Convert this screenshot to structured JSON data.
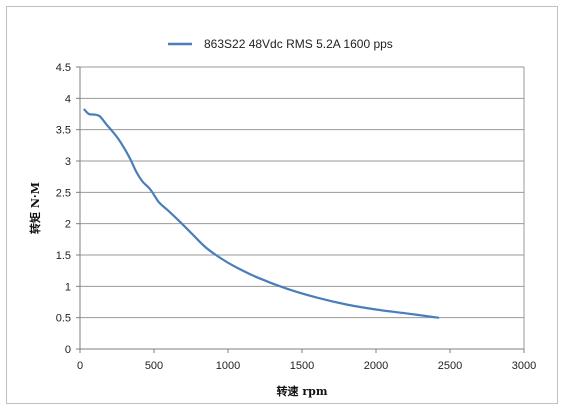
{
  "chart_data": {
    "type": "line",
    "title": "",
    "xlabel": "转速 rpm",
    "ylabel": "转矩 N·M",
    "xlim": [
      0,
      3000
    ],
    "ylim": [
      0,
      4.5
    ],
    "x_ticks": [
      "0",
      "500",
      "1000",
      "1500",
      "2000",
      "2500",
      "3000"
    ],
    "y_ticks": [
      "0",
      "0.5",
      "1",
      "1.5",
      "2",
      "2.5",
      "3",
      "3.5",
      "4",
      "4.5"
    ],
    "grid": "horizontal",
    "legend_position": "top-center",
    "series": [
      {
        "name": "863S22 48Vdc RMS 5.2A 1600 pps",
        "color": "#4a7ebb",
        "x": [
          30,
          60,
          100,
          130,
          150,
          180,
          220,
          260,
          300,
          340,
          380,
          420,
          470,
          500,
          530,
          560,
          600,
          680,
          760,
          850,
          950,
          1050,
          1200,
          1400,
          1600,
          1800,
          2000,
          2200,
          2420
        ],
        "y": [
          3.82,
          3.75,
          3.74,
          3.72,
          3.67,
          3.58,
          3.47,
          3.35,
          3.2,
          3.03,
          2.83,
          2.68,
          2.56,
          2.46,
          2.35,
          2.28,
          2.2,
          2.02,
          1.83,
          1.62,
          1.45,
          1.31,
          1.14,
          0.96,
          0.82,
          0.71,
          0.63,
          0.57,
          0.5
        ]
      }
    ]
  }
}
